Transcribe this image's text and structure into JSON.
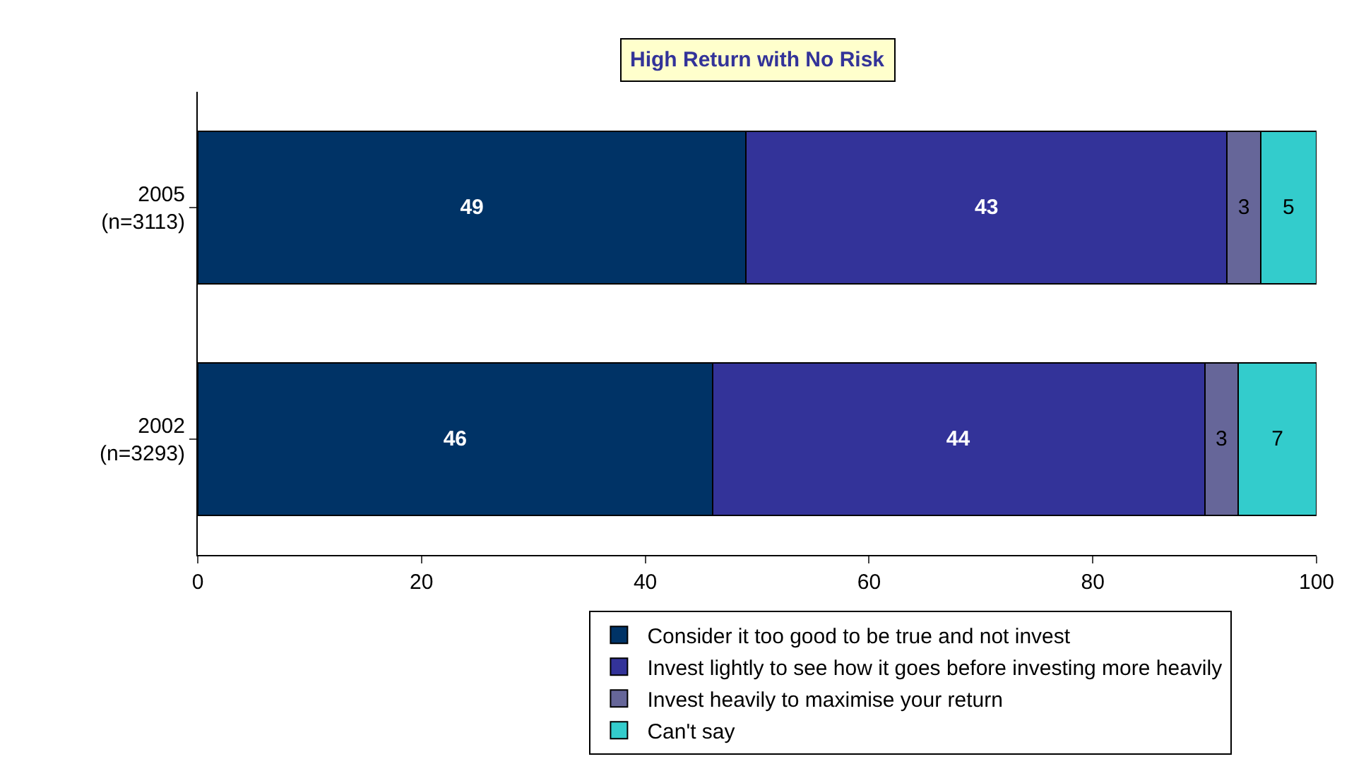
{
  "chart_data": {
    "type": "bar",
    "orientation": "horizontal",
    "stacked": true,
    "title": "High Return with No Risk",
    "categories": [
      "2005\n(n=3113)",
      "2002\n(n=3293)"
    ],
    "series": [
      {
        "name": "Consider it too good to be true and not invest",
        "color": "#003366",
        "values": [
          49,
          46
        ]
      },
      {
        "name": "Invest lightly to see how it goes before investing more heavily",
        "color": "#333399",
        "values": [
          43,
          44
        ]
      },
      {
        "name": "Invest heavily to maximise your return",
        "color": "#666699",
        "values": [
          3,
          3
        ]
      },
      {
        "name": "Can't say",
        "color": "#33cccc",
        "values": [
          5,
          7
        ]
      }
    ],
    "xlim": [
      0,
      100
    ],
    "xticks": [
      0,
      20,
      40,
      60,
      80,
      100
    ],
    "legend": "bottom",
    "data_labels": true
  }
}
